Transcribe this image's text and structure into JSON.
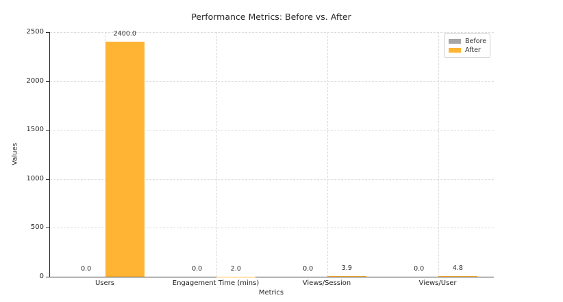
{
  "chart_data": {
    "type": "bar",
    "title": "Performance Metrics: Before vs. After",
    "xlabel": "Metrics",
    "ylabel": "Values",
    "categories": [
      "Users",
      "Engagement Time (mins)",
      "Views/Session",
      "Views/User"
    ],
    "series": [
      {
        "name": "Before",
        "color": "#a6a6a6",
        "values": [
          0.0,
          0.0,
          0.0,
          0.0
        ],
        "value_labels": [
          "0.0",
          "0.0",
          "0.0",
          "0.0"
        ]
      },
      {
        "name": "After",
        "color": "#ffb433",
        "values": [
          2400.0,
          2.0,
          3.9,
          4.8
        ],
        "value_labels": [
          "2400.0",
          "2.0",
          "3.9",
          "4.8"
        ]
      }
    ],
    "ylim": [
      0,
      2500
    ],
    "yticks": [
      0,
      500,
      1000,
      1500,
      2000,
      2500
    ],
    "grid": true,
    "grid_style": "dashed",
    "legend_position": "upper right",
    "bar_width_data_units": 0.35
  },
  "colors": {
    "background": "#ffffff",
    "spine": "#2b2b2b",
    "gridline": "#dcdcdc",
    "text": "#262626",
    "legend_border": "#cccccc"
  }
}
